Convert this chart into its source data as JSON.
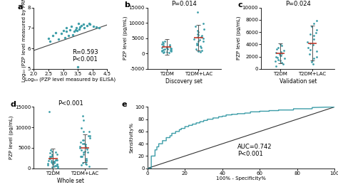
{
  "panel_a": {
    "label": "a",
    "xlabel": "Log₁₀ (PZP level measured by ELISA)",
    "ylabel": "Log₁₀ (PZP level measured by PRM)",
    "xlim": [
      2.0,
      4.5
    ],
    "ylim": [
      5.0,
      8.0
    ],
    "xticks": [
      2.0,
      2.5,
      3.0,
      3.5,
      4.0,
      4.5
    ],
    "yticks": [
      5,
      6,
      7,
      8
    ],
    "annotation": "R=0.593\nP<0.001",
    "scatter_x": [
      2.5,
      2.55,
      2.65,
      2.75,
      2.85,
      2.95,
      3.0,
      3.05,
      3.1,
      3.12,
      3.18,
      3.22,
      3.28,
      3.32,
      3.38,
      3.42,
      3.45,
      3.48,
      3.52,
      3.55,
      3.58,
      3.62,
      3.68,
      3.72,
      3.82,
      3.88,
      3.92,
      4.02,
      4.12,
      4.22
    ],
    "scatter_y": [
      6.5,
      6.35,
      6.62,
      6.78,
      6.45,
      6.72,
      6.88,
      6.52,
      7.02,
      6.82,
      6.62,
      6.92,
      7.08,
      6.68,
      6.82,
      6.92,
      7.02,
      6.88,
      7.22,
      6.95,
      7.05,
      7.12,
      7.18,
      7.02,
      7.12,
      7.22,
      7.18,
      7.08,
      7.05,
      7.0
    ],
    "line_x": [
      2.0,
      4.5
    ],
    "line_y": [
      5.9,
      7.15
    ],
    "outlier_x": [
      3.5
    ],
    "outlier_y": [
      5.1
    ],
    "color": "#3d9da8"
  },
  "panel_b": {
    "label": "b",
    "title": "P=0.014",
    "ylabel": "PZP level (pg/mL)",
    "xlabel": "Discovery set",
    "groups": [
      "T2DM",
      "T2DM+LAC"
    ],
    "ylim": [
      -5000,
      15000
    ],
    "yticks": [
      -5000,
      0,
      5000,
      10000,
      15000
    ],
    "mean1": 2200,
    "mean2": 5200,
    "sd1": 2600,
    "sd2": 4200,
    "t2dm_dots": [
      200,
      300,
      450,
      600,
      750,
      850,
      950,
      1050,
      1150,
      1250,
      1400,
      1500,
      1600,
      1700,
      1800,
      1900,
      2000,
      2100,
      2300,
      2600,
      2900,
      3100,
      3400,
      3700,
      4100
    ],
    "t2dm_lac_dots": [
      450,
      750,
      1100,
      1400,
      1900,
      2400,
      2900,
      3400,
      3900,
      4400,
      4900,
      5400,
      5900,
      6400,
      6900,
      7400,
      7900,
      8900,
      9800,
      13500,
      2900,
      4100,
      5400,
      6100,
      4700
    ],
    "color": "#3d9da8"
  },
  "panel_c": {
    "label": "c",
    "title": "P=0.024",
    "ylabel": "PZP level (pg/mL)",
    "xlabel": "Validation set",
    "groups": [
      "T2DM",
      "T2DM+LAC"
    ],
    "ylim": [
      0,
      10000
    ],
    "yticks": [
      0,
      2000,
      4000,
      6000,
      8000,
      10000
    ],
    "mean1": 2500,
    "mean2": 4200,
    "sd1": 1600,
    "sd2": 2800,
    "t2dm_dots": [
      500,
      800,
      1000,
      1200,
      1500,
      1800,
      2000,
      2200,
      2400,
      2600,
      2800,
      3000,
      3200,
      3500,
      3800,
      4000,
      1400,
      2200,
      1700,
      2500
    ],
    "t2dm_lac_dots": [
      750,
      1100,
      1400,
      1900,
      2400,
      2900,
      3400,
      3900,
      4400,
      4900,
      5400,
      5900,
      6400,
      6900,
      7400,
      7900,
      1700,
      4100,
      5700,
      3100
    ],
    "color": "#3d9da8"
  },
  "panel_d": {
    "label": "d",
    "title": "P<0.001",
    "ylabel": "PZP level (pg/mL)",
    "xlabel": "Whole set",
    "groups": [
      "T2DM",
      "T2DM+LAC"
    ],
    "ylim": [
      0,
      15000
    ],
    "yticks": [
      0,
      5000,
      10000,
      15000
    ],
    "mean1": 2400,
    "mean2": 4900,
    "sd1": 2400,
    "sd2": 3400,
    "t2dm_dots": [
      150,
      250,
      400,
      600,
      700,
      850,
      950,
      1050,
      1150,
      1300,
      1400,
      1500,
      1600,
      1700,
      1800,
      1900,
      2000,
      2100,
      2300,
      2600,
      2900,
      3100,
      3400,
      3700,
      4100,
      450,
      950,
      1450,
      1950,
      2450,
      2950,
      3450,
      3950,
      4450,
      13800
    ],
    "t2dm_lac_dots": [
      450,
      750,
      1100,
      1400,
      1900,
      2400,
      2900,
      3400,
      3900,
      4400,
      4900,
      5400,
      5900,
      6400,
      6900,
      7400,
      7900,
      8900,
      9800,
      12800,
      2900,
      4100,
      5400,
      6100,
      4700,
      950,
      1950,
      2950,
      3950,
      4950,
      5950,
      6950,
      7950,
      8950,
      11800
    ],
    "color": "#3d9da8"
  },
  "panel_e": {
    "label": "e",
    "xlabel": "100% - Specificity%",
    "ylabel": "Sensitivity%",
    "xlim": [
      0,
      100
    ],
    "ylim": [
      0,
      100
    ],
    "xticks": [
      0,
      20,
      40,
      60,
      80,
      100
    ],
    "yticks": [
      0,
      20,
      40,
      60,
      80,
      100
    ],
    "annotation": "AUC=0.742\nP<0.001",
    "roc_x": [
      0,
      2,
      2,
      4,
      4,
      5,
      5,
      6,
      6,
      8,
      8,
      10,
      10,
      12,
      12,
      13,
      13,
      15,
      15,
      17,
      17,
      18,
      18,
      20,
      20,
      22,
      22,
      24,
      24,
      26,
      26,
      28,
      28,
      30,
      30,
      32,
      32,
      35,
      35,
      38,
      38,
      40,
      40,
      42,
      42,
      45,
      45,
      48,
      48,
      52,
      52,
      55,
      55,
      60,
      60,
      65,
      65,
      70,
      70,
      78,
      78,
      88,
      88,
      100
    ],
    "roc_y": [
      0,
      0,
      20,
      20,
      30,
      30,
      35,
      35,
      40,
      40,
      45,
      45,
      50,
      50,
      53,
      53,
      57,
      57,
      60,
      60,
      63,
      63,
      65,
      65,
      68,
      68,
      70,
      70,
      72,
      72,
      74,
      74,
      76,
      76,
      78,
      78,
      80,
      80,
      82,
      82,
      84,
      84,
      85,
      85,
      87,
      87,
      88,
      88,
      89,
      89,
      90,
      90,
      92,
      92,
      93,
      93,
      94,
      94,
      95,
      95,
      97,
      97,
      99,
      100
    ],
    "color": "#3d9da8"
  },
  "bg_color": "#ffffff",
  "dot_color": "#3d9da8",
  "mean_line_color": "#c0392b",
  "err_color": "#555555",
  "reg_line_color": "#444444",
  "diag_line_color": "#333333",
  "tick_fontsize": 5,
  "label_fontsize": 5,
  "title_fontsize": 6,
  "panel_label_fontsize": 8
}
